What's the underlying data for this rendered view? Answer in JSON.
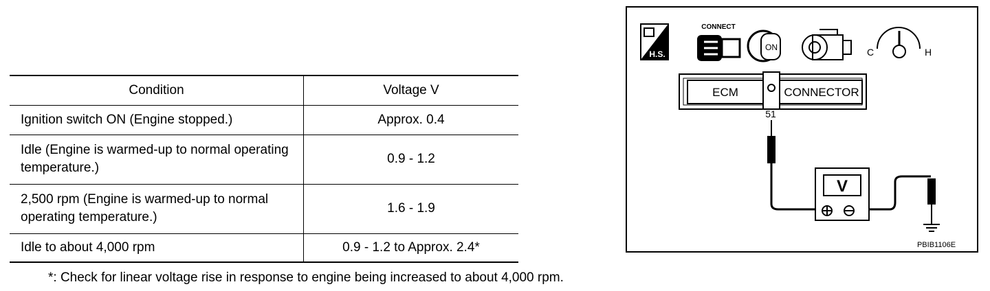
{
  "table": {
    "header": [
      "Condition",
      "Voltage V"
    ],
    "rows": [
      [
        "Ignition switch ON (Engine stopped.)",
        "Approx. 0.4"
      ],
      [
        "Idle (Engine is warmed-up to normal operating temperature.)",
        "0.9 - 1.2"
      ],
      [
        "2,500 rpm (Engine is warmed-up to normal operating temperature.)",
        "1.6 - 1.9"
      ],
      [
        "Idle to about 4,000 rpm",
        "0.9 - 1.2 to Approx. 2.4*"
      ]
    ]
  },
  "footnote": "*: Check for linear voltage rise in response to engine being increased to about 4,000 rpm.",
  "diagram": {
    "icons": {
      "hs": "H.S.",
      "connect": "CONNECT",
      "key": "ON",
      "gauge_cold": "C",
      "gauge_hot": "H"
    },
    "connector": {
      "ecm": "ECM",
      "connector": "CONNECTOR",
      "pin": "51"
    },
    "meter": "V",
    "code": "PBIB1106E"
  }
}
